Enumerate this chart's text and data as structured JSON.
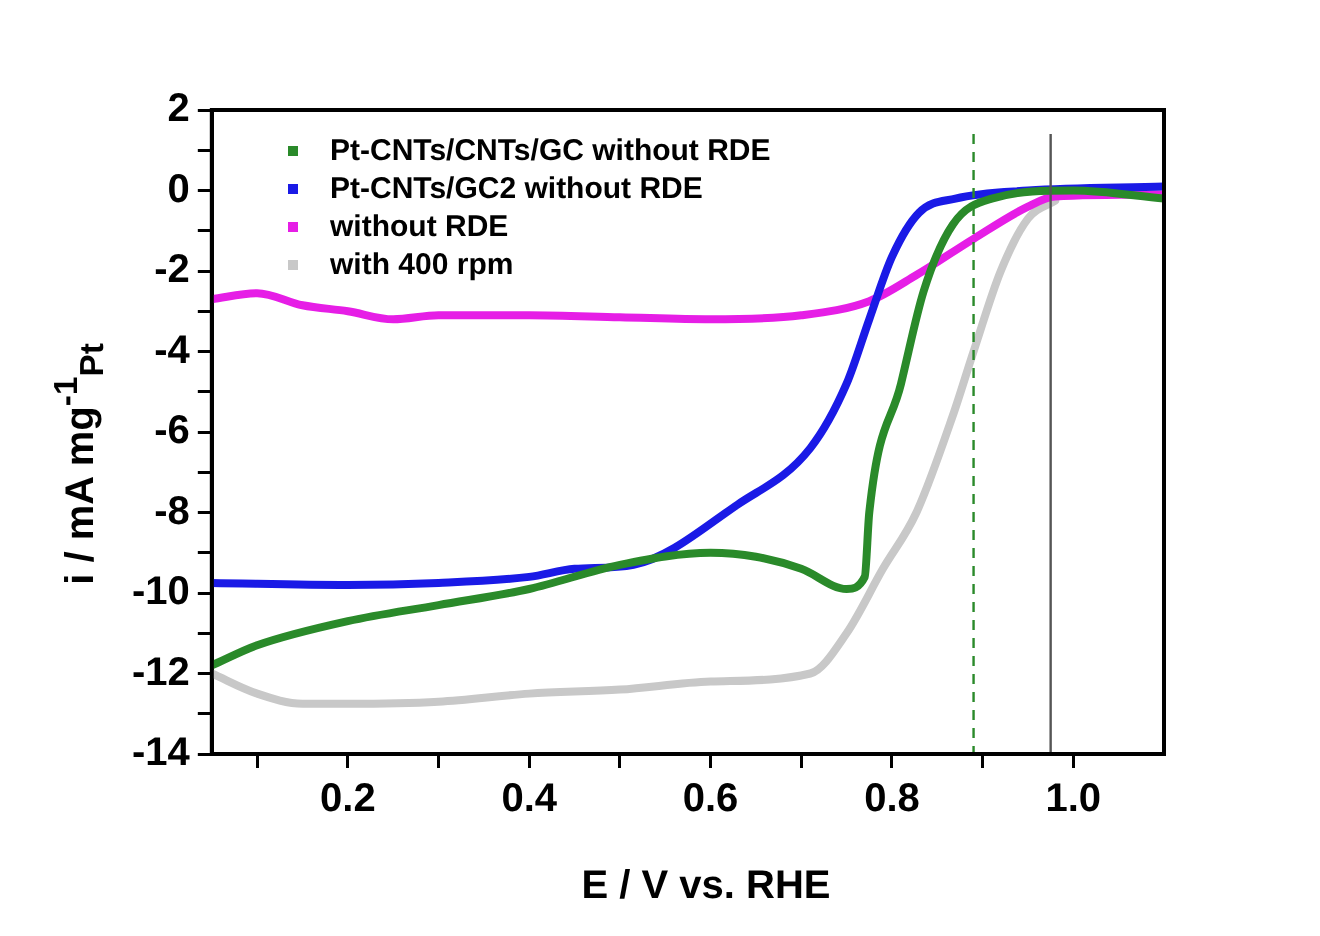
{
  "chart_data": {
    "type": "line",
    "xlabel": "E / V vs. RHE",
    "ylabel": "i / mA mg$^{-1}$$_{Pt}$",
    "xlim": [
      0.05,
      1.1
    ],
    "ylim": [
      -14,
      2
    ],
    "xticks": [
      {
        "value": 0.1,
        "label": null
      },
      0.2,
      {
        "value": 0.3,
        "label": null
      },
      0.4,
      {
        "value": 0.5,
        "label": null
      },
      0.6,
      {
        "value": 0.7,
        "label": null
      },
      0.8,
      {
        "value": 0.9,
        "label": null
      },
      {
        "value": 1.0,
        "label": "1.0"
      }
    ],
    "yticks": [
      -14,
      {
        "value": -13,
        "label": null
      },
      -12,
      {
        "value": -11,
        "label": null
      },
      -10,
      {
        "value": -9,
        "label": null
      },
      -8,
      {
        "value": -7,
        "label": null
      },
      -6,
      {
        "value": -5,
        "label": null
      },
      -4,
      {
        "value": -3,
        "label": null
      },
      -2,
      {
        "value": -1,
        "label": null
      },
      0,
      {
        "value": 1,
        "label": null
      },
      2
    ],
    "grid": false,
    "legend": "top left",
    "marker": "none",
    "line_style": "solid",
    "series": [
      {
        "name": "Pt-CNTs/CNTs/GC without RDE",
        "color": "#2a8a2a",
        "x": [
          0.05,
          0.1,
          0.2,
          0.3,
          0.4,
          0.5,
          0.6,
          0.65,
          0.7,
          0.75,
          0.77,
          0.775,
          0.81,
          0.835,
          0.867,
          0.91,
          1.0,
          1.1
        ],
        "values": [
          -11.8,
          -11.3,
          -10.7,
          -10.3,
          -9.9,
          -9.3,
          -9.0,
          -9.1,
          -9.4,
          -9.9,
          -9.6,
          -8.0,
          -4.8,
          -2.5,
          -0.85,
          -0.2,
          0,
          -0.2
        ]
      },
      {
        "name": "Pt-CNTs/GC2 without RDE",
        "color": "#1a1ae6",
        "x": [
          0.05,
          0.2,
          0.3,
          0.4,
          0.45,
          0.515,
          0.63,
          0.71,
          0.75,
          0.775,
          0.8,
          0.83,
          0.87,
          0.95,
          1.1
        ],
        "values": [
          -9.75,
          -9.8,
          -9.75,
          -9.6,
          -9.4,
          -9.3,
          -7.8,
          -6.4,
          -4.8,
          -3.2,
          -1.65,
          -0.55,
          -0.2,
          0,
          0.1
        ]
      },
      {
        "name": "without RDE",
        "color": "#e61ee6",
        "x": [
          0.05,
          0.1,
          0.15,
          0.2,
          0.25,
          0.3,
          0.4,
          0.5,
          0.6,
          0.7,
          0.775,
          0.827,
          0.89,
          0.95,
          0.98,
          1.1
        ],
        "values": [
          -2.7,
          -2.55,
          -2.85,
          -3.0,
          -3.2,
          -3.1,
          -3.1,
          -3.15,
          -3.2,
          -3.1,
          -2.75,
          -2.1,
          -1.2,
          -0.4,
          -0.15,
          -0.1
        ]
      },
      {
        "name": "with 400 rpm",
        "color": "#c8c8c8",
        "x": [
          0.05,
          0.1,
          0.15,
          0.2,
          0.3,
          0.4,
          0.5,
          0.6,
          0.71,
          0.75,
          0.79,
          0.827,
          0.867,
          0.89,
          0.92,
          0.95,
          0.98
        ],
        "values": [
          -12.0,
          -12.5,
          -12.75,
          -12.75,
          -12.7,
          -12.5,
          -12.4,
          -12.2,
          -12.0,
          -11.0,
          -9.4,
          -8.0,
          -5.6,
          -4.0,
          -2.0,
          -0.7,
          -0.25
        ]
      }
    ],
    "ref_lines": [
      {
        "axis": "x",
        "value": 0.89,
        "color": "#2a8a2a",
        "line_style": "dashed"
      },
      {
        "axis": "x",
        "value": 0.975,
        "color": "#555555",
        "line_style": "solid"
      }
    ]
  }
}
